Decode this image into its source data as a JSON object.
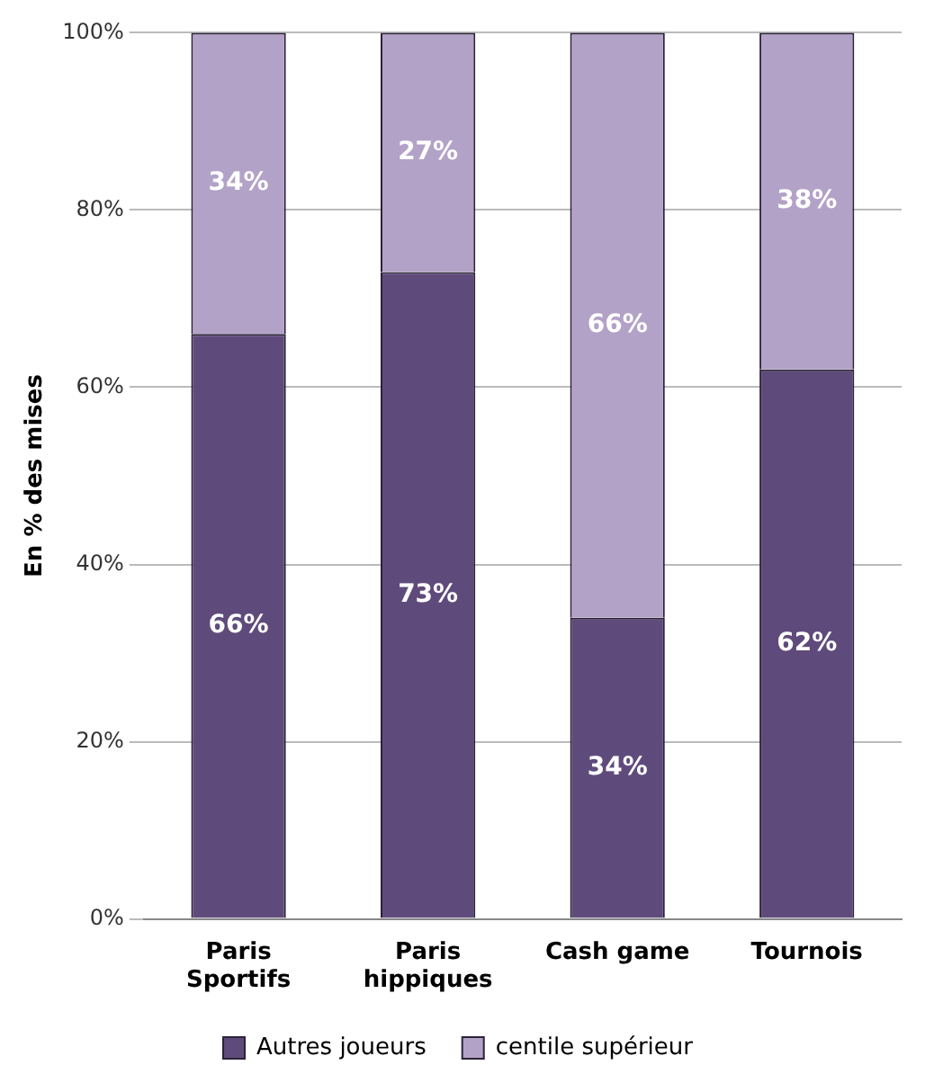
{
  "chart_data": {
    "type": "bar",
    "stacked": true,
    "ylabel": "En % des mises",
    "categories": [
      "Paris Sportifs",
      "Paris hippiques",
      "Cash game",
      "Tournois"
    ],
    "series": [
      {
        "name": "Autres joueurs",
        "color": "#5f4b7b",
        "values": [
          66,
          73,
          34,
          62
        ],
        "value_labels": [
          "66%",
          "73%",
          "34%",
          "62%"
        ]
      },
      {
        "name": "centile supérieur",
        "color": "#b3a2c7",
        "values": [
          34,
          27,
          66,
          38
        ],
        "value_labels": [
          "34%",
          "27%",
          "66%",
          "38%"
        ]
      }
    ],
    "ylim": [
      0,
      100
    ],
    "yticks": [
      {
        "value": 0,
        "label": "0%"
      },
      {
        "value": 20,
        "label": "20%"
      },
      {
        "value": 40,
        "label": "40%"
      },
      {
        "value": 60,
        "label": "60%"
      },
      {
        "value": 80,
        "label": "80%"
      },
      {
        "value": 100,
        "label": "100%"
      }
    ],
    "grid": "y",
    "legend": "bottom"
  }
}
